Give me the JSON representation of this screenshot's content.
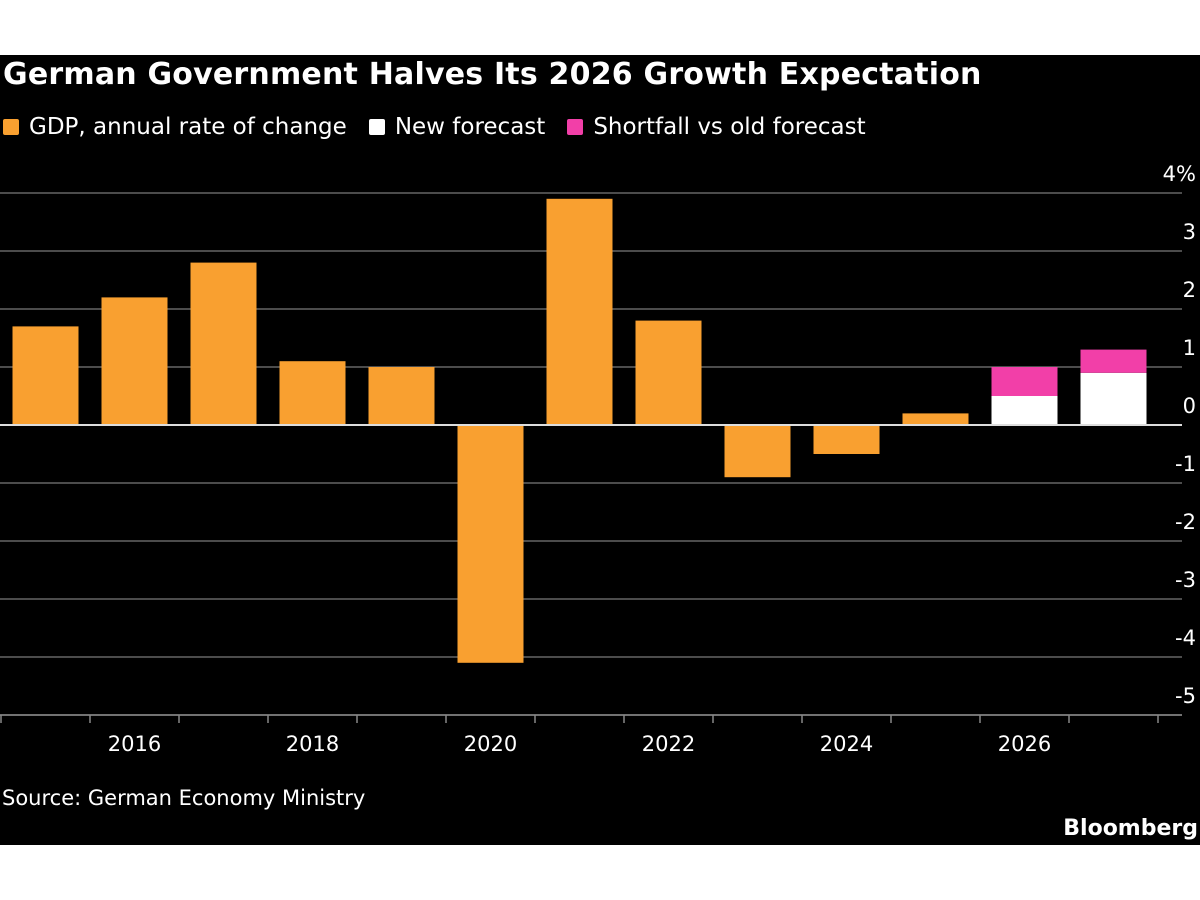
{
  "chart_data": {
    "type": "bar",
    "title": "German Government Halves Its 2026 Growth Expectation",
    "legend": [
      {
        "name": "GDP, annual rate of change",
        "color": "#F9A030"
      },
      {
        "name": "New forecast",
        "color": "#FFFFFF"
      },
      {
        "name": "Shortfall vs old forecast",
        "color": "#F23FA8"
      }
    ],
    "legend_placement": "top-left",
    "categories": [
      2015,
      2016,
      2017,
      2018,
      2019,
      2020,
      2021,
      2022,
      2023,
      2024,
      2025,
      2026,
      2027
    ],
    "series": [
      {
        "name": "GDP, annual rate of change",
        "values": [
          1.7,
          2.2,
          2.8,
          1.1,
          1.0,
          -4.1,
          3.9,
          1.8,
          -0.9,
          -0.5,
          0.2,
          null,
          null
        ]
      },
      {
        "name": "New forecast",
        "values": [
          null,
          null,
          null,
          null,
          null,
          null,
          null,
          null,
          null,
          null,
          null,
          0.5,
          0.9
        ]
      },
      {
        "name": "Shortfall vs old forecast",
        "values": [
          null,
          null,
          null,
          null,
          null,
          null,
          null,
          null,
          null,
          null,
          null,
          0.5,
          0.4
        ]
      }
    ],
    "x_tick_labels": [
      "2016",
      "2018",
      "2020",
      "2022",
      "2024",
      "2026"
    ],
    "y_tick_labels": [
      "4%",
      "3",
      "2",
      "1",
      "0",
      "-1",
      "-2",
      "-3",
      "-4",
      "-5"
    ],
    "ylim": [
      -5,
      4
    ],
    "grid": true,
    "y_axis_side": "right",
    "xlabel": "",
    "ylabel": ""
  },
  "source": "Source: German Economy Ministry",
  "brand": "Bloomberg"
}
